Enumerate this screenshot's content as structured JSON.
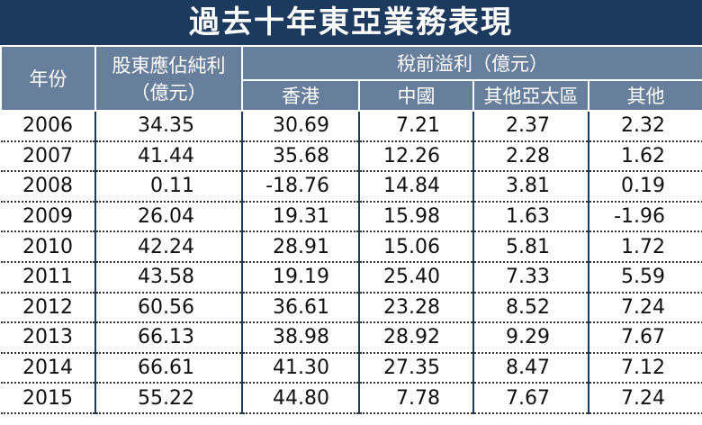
{
  "title": "過去十年東亞業務表現",
  "header": {
    "year": "年份",
    "profit": [
      "股東應佔純利",
      "（億元）"
    ],
    "pretax": "稅前溢利（億元）",
    "regions": [
      "香港",
      "中國",
      "其他亞太區",
      "其他"
    ]
  },
  "table": {
    "rows": [
      [
        "2006",
        "34.35",
        "30.69",
        "7.21",
        "2.37",
        "2.32"
      ],
      [
        "2007",
        "41.44",
        "35.68",
        "12.26",
        "2.28",
        "1.62"
      ],
      [
        "2008",
        "0.11",
        "-18.76",
        "14.84",
        "3.81",
        "0.19"
      ],
      [
        "2009",
        "26.04",
        "19.31",
        "15.98",
        "1.63",
        "-1.96"
      ],
      [
        "2010",
        "42.24",
        "28.91",
        "15.06",
        "5.81",
        "1.72"
      ],
      [
        "2011",
        "43.58",
        "19.19",
        "25.40",
        "7.33",
        "5.59"
      ],
      [
        "2012",
        "60.56",
        "36.61",
        "23.28",
        "8.52",
        "7.24"
      ],
      [
        "2013",
        "66.13",
        "38.98",
        "28.92",
        "9.29",
        "7.67"
      ],
      [
        "2014",
        "66.61",
        "41.30",
        "27.35",
        "8.47",
        "7.12"
      ],
      [
        "2015",
        "55.22",
        "44.80",
        "7.78",
        "7.67",
        "7.24"
      ]
    ]
  }
}
